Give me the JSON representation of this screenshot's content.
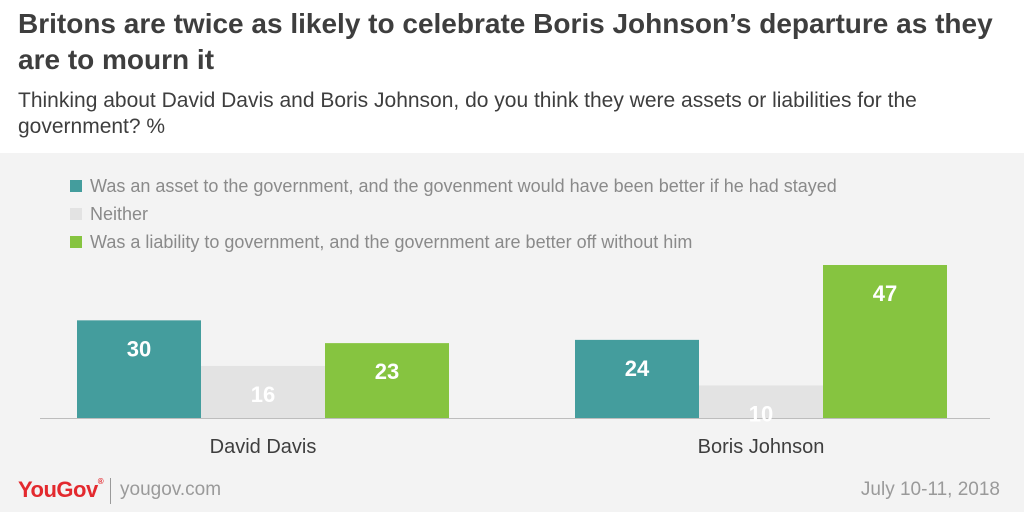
{
  "title": "Britons are twice as likely to celebrate Boris Johnson’s departure as they are to mourn it",
  "subtitle": "Thinking about David Davis and Boris Johnson, do you think they were assets or liabilities for the government? %",
  "legend": [
    {
      "label": "Was an asset to the government, and the govenment would have been better if he had stayed",
      "color": "#449d9d"
    },
    {
      "label": "Neither",
      "color": "#e3e3e3"
    },
    {
      "label": "Was a liability to government, and the government are better off without him",
      "color": "#86c440"
    }
  ],
  "chart_data": {
    "type": "bar",
    "categories": [
      "David Davis",
      "Boris Johnson"
    ],
    "series": [
      {
        "values": [
          30,
          24
        ],
        "color": "#449d9d"
      },
      {
        "values": [
          16,
          10
        ],
        "color": "#e3e3e3"
      },
      {
        "values": [
          23,
          47
        ],
        "color": "#86c440"
      }
    ],
    "ylim": [
      0,
      50
    ],
    "grid": false,
    "data_labels": true,
    "legend_position": "top-left"
  },
  "footer": {
    "brand": "YouGov",
    "site": "yougov.com",
    "date": "July 10-11, 2018"
  },
  "colors": {
    "label_on_bar": "#ffffff",
    "label_on_neutral": "#ffffff",
    "axis_text": "#3e3e3e",
    "brand_red": "#e3292e"
  }
}
